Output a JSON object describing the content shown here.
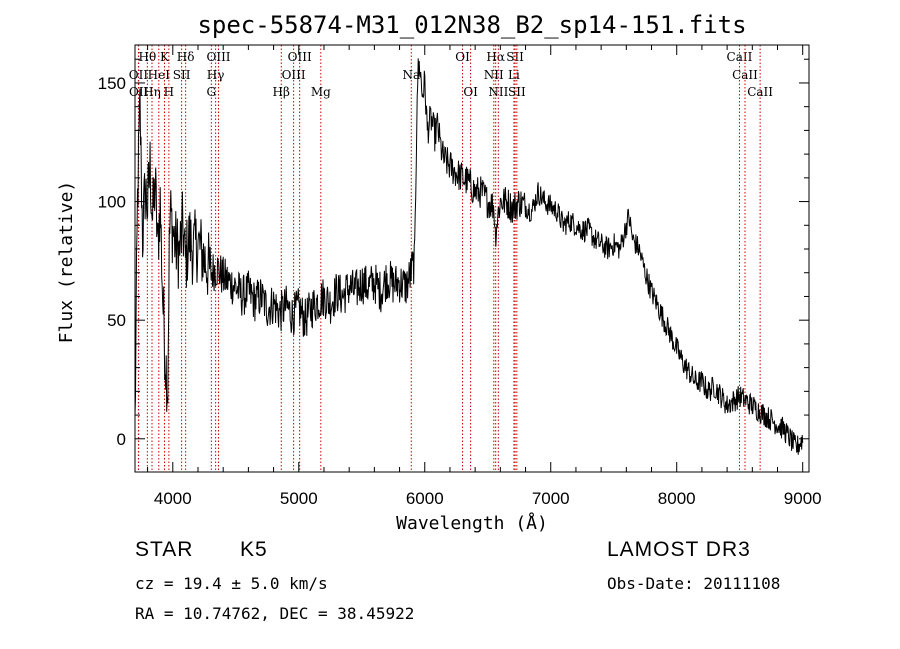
{
  "chart_data": {
    "type": "line",
    "title": "spec-55874-M31_012N38_B2_sp14-151.fits",
    "xlabel": "Wavelength (Å)",
    "ylabel": "Flux (relative)",
    "xlim": [
      3700,
      9050
    ],
    "ylim": [
      -14,
      166
    ],
    "xticks": [
      4000,
      5000,
      6000,
      7000,
      8000,
      9000
    ],
    "yticks": [
      0,
      50,
      100,
      150
    ],
    "series": [
      {
        "name": "flux",
        "x": [
          3700,
          3720,
          3740,
          3760,
          3780,
          3800,
          3820,
          3840,
          3860,
          3880,
          3900,
          3920,
          3940,
          3960,
          3970,
          3980,
          4000,
          4020,
          4050,
          4080,
          4100,
          4130,
          4160,
          4200,
          4250,
          4300,
          4350,
          4400,
          4450,
          4500,
          4550,
          4600,
          4650,
          4700,
          4750,
          4800,
          4850,
          4900,
          4950,
          5000,
          5050,
          5100,
          5150,
          5200,
          5250,
          5300,
          5350,
          5400,
          5450,
          5500,
          5550,
          5600,
          5650,
          5700,
          5750,
          5800,
          5850,
          5880,
          5900,
          5920,
          5940,
          5960,
          5980,
          6000,
          6020,
          6050,
          6080,
          6100,
          6130,
          6150,
          6200,
          6250,
          6300,
          6350,
          6400,
          6450,
          6500,
          6550,
          6560,
          6580,
          6600,
          6650,
          6700,
          6750,
          6800,
          6850,
          6900,
          6950,
          7000,
          7050,
          7100,
          7150,
          7200,
          7250,
          7300,
          7350,
          7400,
          7450,
          7500,
          7550,
          7600,
          7620,
          7650,
          7700,
          7750,
          7800,
          7850,
          7900,
          7950,
          8000,
          8050,
          8100,
          8150,
          8200,
          8250,
          8300,
          8350,
          8400,
          8450,
          8500,
          8550,
          8600,
          8650,
          8700,
          8750,
          8800,
          8850,
          8900,
          8950,
          9000
        ],
        "values": [
          5,
          100,
          140,
          85,
          105,
          98,
          115,
          92,
          108,
          80,
          100,
          60,
          35,
          22,
          75,
          95,
          88,
          82,
          78,
          90,
          74,
          85,
          80,
          82,
          76,
          70,
          72,
          68,
          66,
          64,
          60,
          62,
          58,
          60,
          55,
          57,
          53,
          56,
          52,
          55,
          50,
          55,
          58,
          60,
          57,
          62,
          60,
          64,
          62,
          66,
          64,
          66,
          62,
          68,
          65,
          66,
          64,
          68,
          72,
          75,
          150,
          158,
          145,
          150,
          130,
          135,
          128,
          132,
          122,
          118,
          115,
          112,
          110,
          108,
          104,
          104,
          100,
          98,
          86,
          94,
          100,
          100,
          97,
          100,
          98,
          96,
          104,
          100,
          98,
          96,
          90,
          92,
          90,
          88,
          88,
          84,
          82,
          80,
          82,
          80,
          90,
          94,
          84,
          80,
          70,
          62,
          56,
          50,
          44,
          38,
          32,
          28,
          24,
          24,
          20,
          22,
          18,
          14,
          16,
          18,
          16,
          14,
          12,
          10,
          8,
          6,
          4,
          0,
          -4,
          0
        ]
      }
    ],
    "lines": [
      {
        "label": "Hθ",
        "wl": 3798,
        "row": 0
      },
      {
        "label": "OII",
        "wl": 3727,
        "row": 1
      },
      {
        "label": "OII",
        "wl": 3729,
        "row": 2
      },
      {
        "label": "Hη",
        "wl": 3835,
        "row": 2
      },
      {
        "label": "HeI",
        "wl": 3889,
        "row": 1
      },
      {
        "label": "K",
        "wl": 3934,
        "row": 0
      },
      {
        "label": "H",
        "wl": 3969,
        "row": 2
      },
      {
        "label": "SII",
        "wl": 4070,
        "row": 1
      },
      {
        "label": "Hδ",
        "wl": 4102,
        "row": 0
      },
      {
        "label": "OIII",
        "wl": 4363,
        "row": 0
      },
      {
        "label": "Hγ",
        "wl": 4340,
        "row": 1
      },
      {
        "label": "G",
        "wl": 4306,
        "row": 2
      },
      {
        "label": "Hβ",
        "wl": 4861,
        "row": 2
      },
      {
        "label": "OIII",
        "wl": 5007,
        "row": 0
      },
      {
        "label": "OIII",
        "wl": 4959,
        "row": 1
      },
      {
        "label": "Mg",
        "wl": 5175,
        "row": 2
      },
      {
        "label": "Na",
        "wl": 5893,
        "row": 1
      },
      {
        "label": "OI",
        "wl": 6300,
        "row": 0
      },
      {
        "label": "OI",
        "wl": 6364,
        "row": 2
      },
      {
        "label": "Hα",
        "wl": 6563,
        "row": 0
      },
      {
        "label": "SII",
        "wl": 6717,
        "row": 0
      },
      {
        "label": "NII",
        "wl": 6548,
        "row": 1
      },
      {
        "label": "NII",
        "wl": 6584,
        "row": 2
      },
      {
        "label": "Li",
        "wl": 6708,
        "row": 1
      },
      {
        "label": "SII",
        "wl": 6731,
        "row": 2
      },
      {
        "label": "CaII",
        "wl": 8498,
        "row": 0
      },
      {
        "label": "CaII",
        "wl": 8542,
        "row": 1
      },
      {
        "label": "CaII",
        "wl": 8662,
        "row": 2
      }
    ],
    "line_color": "#000000",
    "marker_color": "#cc0000"
  },
  "info": {
    "class": "STAR",
    "subclass": "K5",
    "survey": "LAMOST DR3",
    "cz": "cz = 19.4 ± 5.0 km/s",
    "obs_date": "Obs-Date: 20111108",
    "coords": "RA =  10.74762, DEC =  38.45922"
  }
}
